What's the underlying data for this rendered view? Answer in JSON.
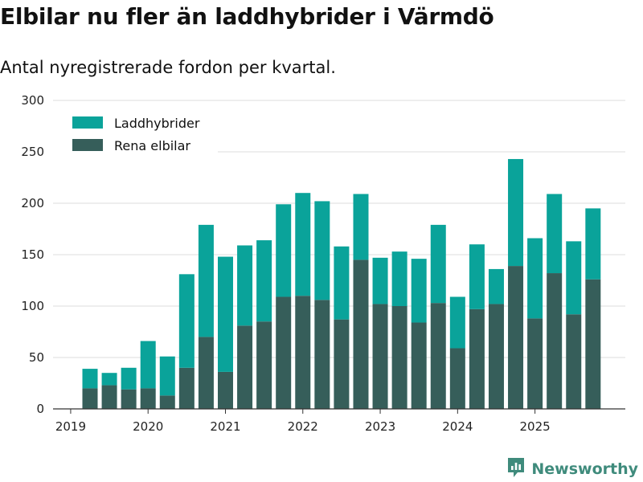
{
  "header": {
    "title": "Elbilar nu fler än laddhybrider i Värmdö",
    "subtitle": "Antal nyregistrerade fordon per kvartal."
  },
  "brand": {
    "name": "Newsworthy",
    "icon": "newsworthy-logo-icon",
    "color": "#3f8b7c"
  },
  "colors": {
    "laddhybrider": "#0aa39a",
    "elbilar": "#365e5a",
    "grid": "#dddddd",
    "axis": "#333333"
  },
  "chart_data": {
    "type": "bar",
    "stacked": true,
    "title": "Elbilar nu fler än laddhybrider i Värmdö",
    "subtitle": "Antal nyregistrerade fordon per kvartal.",
    "xlabel": "",
    "ylabel": "",
    "ylim": [
      0,
      300
    ],
    "yticks": [
      0,
      50,
      100,
      150,
      200,
      250,
      300
    ],
    "xtick_labels": [
      "2019",
      "2020",
      "2021",
      "2022",
      "2023",
      "2024",
      "2025"
    ],
    "legend_position": "top-left",
    "grid": true,
    "categories": [
      "2019 Q2",
      "2019 Q3",
      "2019 Q4",
      "2020 Q1",
      "2020 Q2",
      "2020 Q3",
      "2020 Q4",
      "2021 Q1",
      "2021 Q2",
      "2021 Q3",
      "2021 Q4",
      "2022 Q1",
      "2022 Q2",
      "2022 Q3",
      "2022 Q4",
      "2023 Q1",
      "2023 Q2",
      "2023 Q3",
      "2023 Q4",
      "2024 Q1",
      "2024 Q2",
      "2024 Q3",
      "2024 Q4",
      "2025 Q1",
      "2025 Q2",
      "2025 Q3",
      "2025 Q4"
    ],
    "series": [
      {
        "name": "Rena elbilar",
        "values": [
          20,
          23,
          19,
          20,
          13,
          40,
          70,
          36,
          81,
          85,
          109,
          110,
          106,
          87,
          145,
          102,
          100,
          84,
          103,
          59,
          97,
          102,
          139,
          88,
          132,
          92,
          126
        ]
      },
      {
        "name": "Laddhybrider",
        "values": [
          19,
          12,
          21,
          46,
          38,
          91,
          109,
          112,
          78,
          79,
          90,
          100,
          96,
          71,
          64,
          45,
          53,
          62,
          76,
          50,
          63,
          34,
          104,
          78,
          77,
          71,
          69
        ]
      }
    ]
  }
}
